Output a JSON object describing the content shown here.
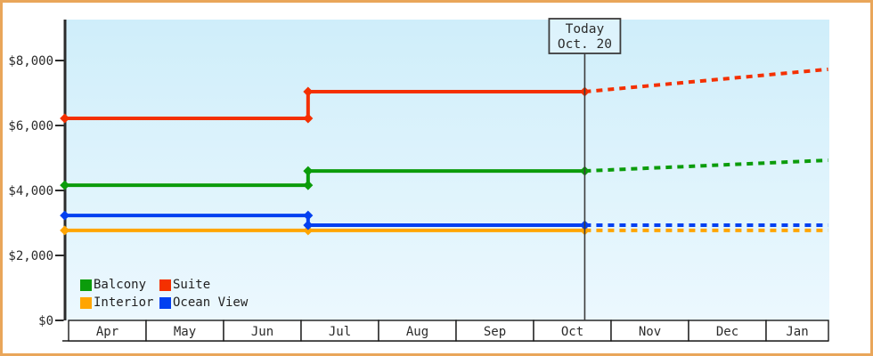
{
  "colors": {
    "frame_border": "#e9a65a",
    "plot_bg_top": "#cfeefa",
    "plot_bg_bottom": "#ecf8fe",
    "axis": "#2b2b2b",
    "today_line": "#3c3c3c",
    "text": "#2b2b2b"
  },
  "legend": {
    "items": [
      {
        "label": "Balcony",
        "color": "#0b9c0b"
      },
      {
        "label": "Suite",
        "color": "#f43000"
      },
      {
        "label": "Interior",
        "color": "#ffa502"
      },
      {
        "label": "Ocean View",
        "color": "#0340f0"
      }
    ]
  },
  "chart_data": {
    "type": "line",
    "title": "",
    "x_categories": [
      "Apr",
      "May",
      "Jun",
      "Jul",
      "Aug",
      "Sep",
      "Oct",
      "Nov",
      "Dec",
      "Jan"
    ],
    "x_unit_note": "m = months after Apr 1 (0 = Apr 1); step change ~Jul 3 (m=3.09); today = Oct 20 (m=6.66); projection ends ~Jan 25 (m=9.8)",
    "y_ticks": [
      {
        "label": "$0",
        "value": 0
      },
      {
        "label": "$2,000",
        "value": 2000
      },
      {
        "label": "$4,000",
        "value": 4000
      },
      {
        "label": "$6,000",
        "value": 6000
      },
      {
        "label": "$8,000",
        "value": 8000
      }
    ],
    "ylim": [
      0,
      9300
    ],
    "today": {
      "label_line1": "Today",
      "label_line2": "Oct. 20",
      "m": 6.66
    },
    "series": [
      {
        "name": "Interior",
        "color": "#ffa502",
        "solid": [
          [
            -0.05,
            2770
          ],
          [
            3.09,
            2770
          ],
          [
            6.66,
            2770
          ]
        ],
        "projected": [
          [
            6.66,
            2770
          ],
          [
            9.8,
            2770
          ]
        ]
      },
      {
        "name": "Ocean View",
        "color": "#0340f0",
        "solid": [
          [
            -0.05,
            3230
          ],
          [
            3.09,
            3230
          ],
          [
            3.09,
            2930
          ],
          [
            6.66,
            2930
          ]
        ],
        "projected": [
          [
            6.66,
            2930
          ],
          [
            9.8,
            2930
          ]
        ]
      },
      {
        "name": "Balcony",
        "color": "#0b9c0b",
        "solid": [
          [
            -0.05,
            4160
          ],
          [
            3.09,
            4160
          ],
          [
            3.09,
            4600
          ],
          [
            6.66,
            4600
          ]
        ],
        "projected": [
          [
            6.66,
            4600
          ],
          [
            9.8,
            4930
          ]
        ]
      },
      {
        "name": "Suite",
        "color": "#f43000",
        "solid": [
          [
            -0.05,
            6220
          ],
          [
            3.09,
            6220
          ],
          [
            3.09,
            7040
          ],
          [
            6.66,
            7040
          ]
        ],
        "projected": [
          [
            6.66,
            7040
          ],
          [
            9.8,
            7730
          ]
        ]
      }
    ]
  }
}
